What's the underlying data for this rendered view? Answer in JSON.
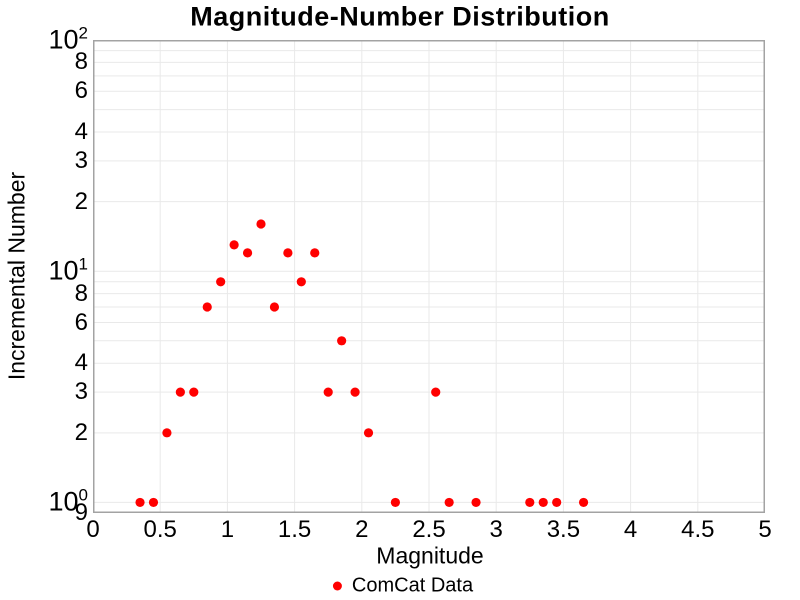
{
  "chart_data": {
    "type": "scatter",
    "title": "Magnitude-Number Distribution",
    "xlabel": "Magnitude",
    "ylabel": "Incremental Number",
    "x_scale": "linear",
    "y_scale": "log",
    "xlim": [
      0,
      5
    ],
    "ylim": [
      0.9,
      100
    ],
    "grid": true,
    "frame": "box",
    "colors": {
      "marker": "#ff0000",
      "grid": "#e9e9e9",
      "frame": "#a3a3a3",
      "text": "#000000"
    },
    "x_ticks": [
      {
        "value": 0,
        "label": "0"
      },
      {
        "value": 0.5,
        "label": "0.5"
      },
      {
        "value": 1,
        "label": "1"
      },
      {
        "value": 1.5,
        "label": "1.5"
      },
      {
        "value": 2,
        "label": "2"
      },
      {
        "value": 2.5,
        "label": "2.5"
      },
      {
        "value": 3,
        "label": "3"
      },
      {
        "value": 3.5,
        "label": "3.5"
      },
      {
        "value": 4,
        "label": "4"
      },
      {
        "value": 4.5,
        "label": "4.5"
      },
      {
        "value": 5,
        "label": "5"
      }
    ],
    "y_ticks": [
      {
        "value": 100,
        "base": "10",
        "exp": "2"
      },
      {
        "value": 80,
        "label": "8"
      },
      {
        "value": 60,
        "label": "6"
      },
      {
        "value": 40,
        "label": "4"
      },
      {
        "value": 30,
        "label": "3"
      },
      {
        "value": 20,
        "label": "2"
      },
      {
        "value": 10,
        "base": "10",
        "exp": "1"
      },
      {
        "value": 8,
        "label": "8"
      },
      {
        "value": 6,
        "label": "6"
      },
      {
        "value": 4,
        "label": "4"
      },
      {
        "value": 3,
        "label": "3"
      },
      {
        "value": 2,
        "label": "2"
      },
      {
        "value": 1,
        "base": "10",
        "exp": "0"
      },
      {
        "value": 0.9,
        "label": "9"
      }
    ],
    "y_grid_values": [
      1,
      2,
      3,
      4,
      5,
      6,
      7,
      8,
      9,
      10,
      20,
      30,
      40,
      50,
      60,
      70,
      80,
      90
    ],
    "legend": {
      "position": "bottom-center",
      "entries": [
        {
          "label": "ComCat Data",
          "marker": "circle",
          "color": "#ff0000"
        }
      ]
    },
    "series": [
      {
        "name": "ComCat Data",
        "color": "#ff0000",
        "marker": "circle",
        "points": [
          [
            0.35,
            1
          ],
          [
            0.45,
            1
          ],
          [
            0.55,
            2
          ],
          [
            0.65,
            3
          ],
          [
            0.75,
            3
          ],
          [
            0.85,
            7
          ],
          [
            0.95,
            9
          ],
          [
            1.05,
            13
          ],
          [
            1.15,
            12
          ],
          [
            1.25,
            16
          ],
          [
            1.35,
            7
          ],
          [
            1.45,
            12
          ],
          [
            1.55,
            9
          ],
          [
            1.65,
            12
          ],
          [
            1.75,
            3
          ],
          [
            1.85,
            5
          ],
          [
            1.95,
            3
          ],
          [
            2.05,
            2
          ],
          [
            2.25,
            1
          ],
          [
            2.55,
            3
          ],
          [
            2.65,
            1
          ],
          [
            2.85,
            1
          ],
          [
            3.25,
            1
          ],
          [
            3.35,
            1
          ],
          [
            3.45,
            1
          ],
          [
            3.65,
            1
          ]
        ]
      }
    ]
  }
}
